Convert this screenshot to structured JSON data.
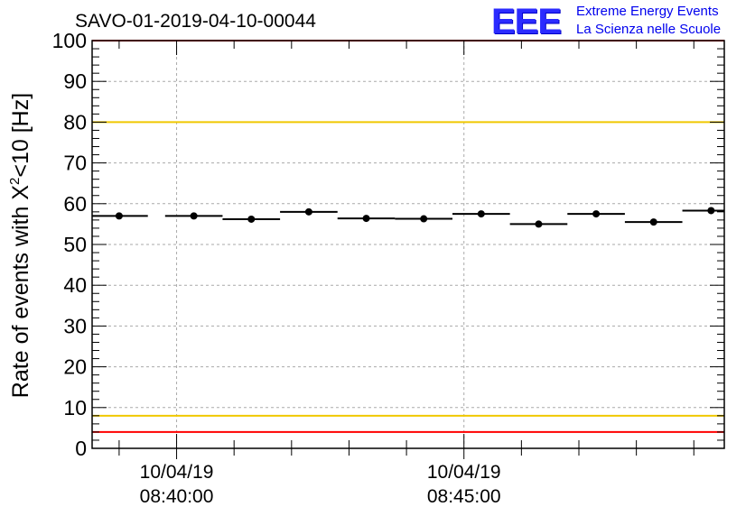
{
  "chart_data": {
    "type": "scatter",
    "title": "SAVO-01-2019-04-10-00044",
    "ylabel_prefix": "Rate of events with X",
    "ylabel_sup": "2",
    "ylabel_suffix": "<10 [Hz]",
    "xlabel": "",
    "ylim": [
      0,
      100
    ],
    "yticks": [
      0,
      10,
      20,
      30,
      40,
      50,
      60,
      70,
      80,
      90,
      100
    ],
    "xlim_min": [
      38.53,
      49.53
    ],
    "xticks": [
      {
        "at_min": 40.0,
        "date": "10/04/19",
        "time": "08:40:00"
      },
      {
        "at_min": 45.0,
        "date": "10/04/19",
        "time": "08:45:00"
      }
    ],
    "points": [
      {
        "x": 39.0,
        "y": 57.0,
        "xerr": 0.5,
        "yerr": 0.3
      },
      {
        "x": 40.3,
        "y": 57.0,
        "xerr": 0.5,
        "yerr": 0.3
      },
      {
        "x": 41.3,
        "y": 56.2,
        "xerr": 0.5,
        "yerr": 0.3
      },
      {
        "x": 42.3,
        "y": 58.0,
        "xerr": 0.5,
        "yerr": 0.3
      },
      {
        "x": 43.3,
        "y": 56.4,
        "xerr": 0.5,
        "yerr": 0.3
      },
      {
        "x": 44.3,
        "y": 56.3,
        "xerr": 0.5,
        "yerr": 0.3
      },
      {
        "x": 45.3,
        "y": 57.5,
        "xerr": 0.5,
        "yerr": 0.3
      },
      {
        "x": 46.3,
        "y": 55.0,
        "xerr": 0.5,
        "yerr": 0.3
      },
      {
        "x": 47.3,
        "y": 57.5,
        "xerr": 0.5,
        "yerr": 0.3
      },
      {
        "x": 48.3,
        "y": 55.5,
        "xerr": 0.5,
        "yerr": 0.3
      },
      {
        "x": 49.3,
        "y": 58.3,
        "xerr": 0.5,
        "yerr": 0.3
      }
    ],
    "reference_lines": [
      {
        "y": 100,
        "color": "#ff0000"
      },
      {
        "y": 80,
        "color": "#f0c800"
      },
      {
        "y": 8,
        "color": "#f0c800"
      },
      {
        "y": 4,
        "color": "#ff0000"
      }
    ],
    "grid": true
  },
  "logo": {
    "mark": "EEE",
    "line1": "Extreme Energy Events",
    "line2": "La Scienza nelle Scuole"
  }
}
